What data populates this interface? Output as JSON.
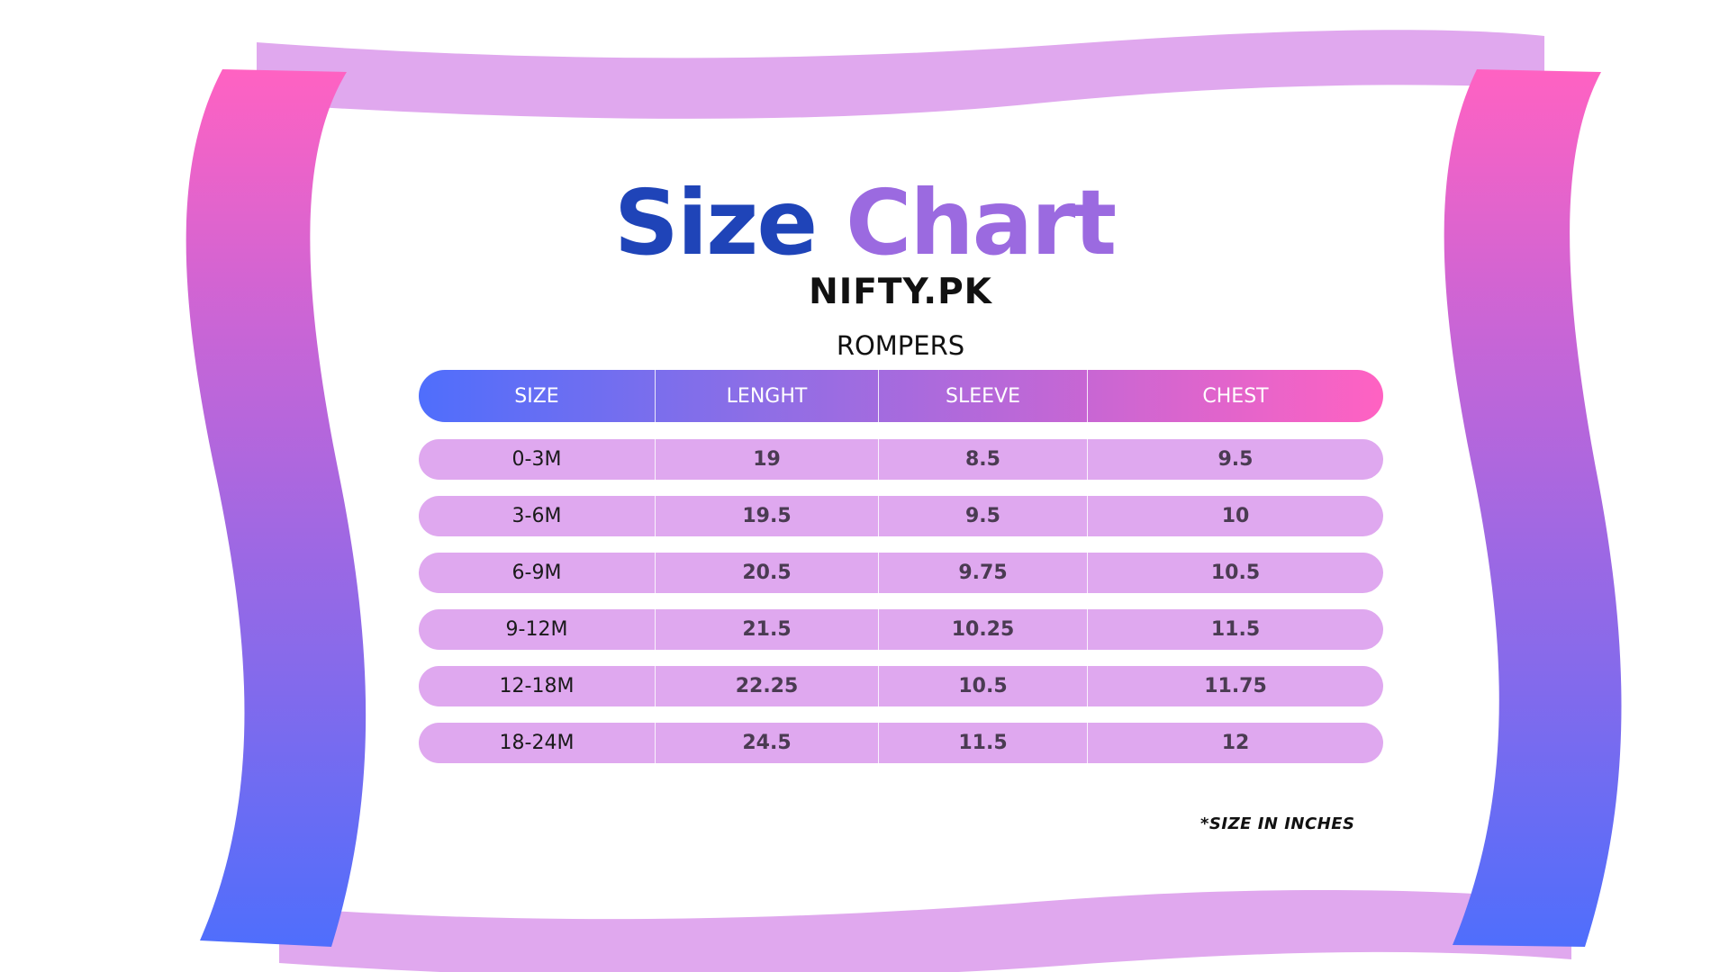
{
  "title_word1": "Size",
  "title_word2": "Chart",
  "brand": "NIFTY.PK",
  "category": "ROMPERS",
  "columns": [
    "SIZE",
    "LENGHT",
    "SLEEVE",
    "CHEST"
  ],
  "rows": [
    [
      "0-3M",
      "19",
      "8.5",
      "9.5"
    ],
    [
      "3-6M",
      "19.5",
      "9.5",
      "10"
    ],
    [
      "6-9M",
      "20.5",
      "9.75",
      "10.5"
    ],
    [
      "9-12M",
      "21.5",
      "10.25",
      "11.5"
    ],
    [
      "12-18M",
      "22.25",
      "10.5",
      "11.75"
    ],
    [
      "18-24M",
      "24.5",
      "11.5",
      "12"
    ]
  ],
  "note": "*SIZE IN INCHES",
  "colors": {
    "title_blue": "#1f44b8",
    "title_purple": "#9b6ae0",
    "row_fill": "#dfa8ef",
    "ribbon_lilac": "#e0a8ee",
    "gradient_pink": "#ff62c2",
    "gradient_blue": "#4f6efc"
  }
}
